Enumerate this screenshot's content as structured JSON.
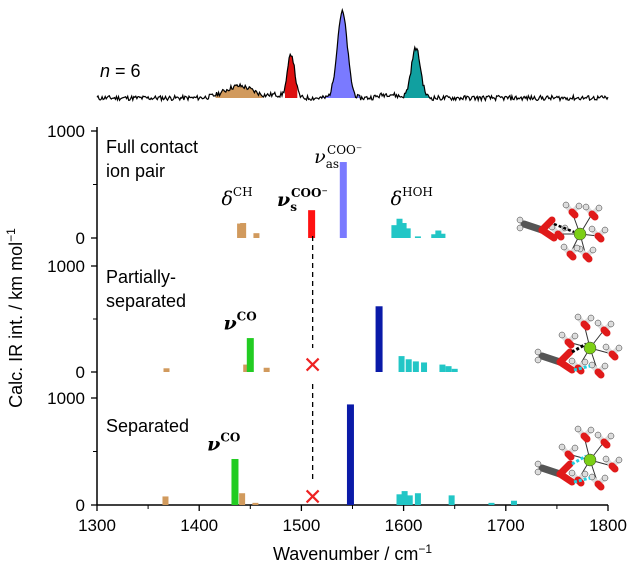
{
  "chart_data": {
    "type": "bar",
    "xlabel": "Wavenumber / cm",
    "xlabel_sup": "−1",
    "ylabel": "Calc. IR int. / km mol",
    "ylabel_sup": "−1",
    "xlim": [
      1300,
      1800
    ],
    "ylim": [
      0,
      1000
    ],
    "x_ticks": [
      "1300",
      "1400",
      "1500",
      "1600",
      "1700",
      "1800"
    ],
    "y_ticks": [
      "0",
      "1000"
    ],
    "colors": {
      "ch_bend": "#d19a5d",
      "co_stretch": "#22cc22",
      "coo_sym": "#ff1111",
      "coo_asym_contact": "#7a7aff",
      "coo_asym_separated": "#0a1aa8",
      "hoh_bend": "#22c6c6",
      "cross": "#ee2222",
      "experiment_peak_ch": "#d19a5d",
      "experiment_peak_red": "#dd1111",
      "experiment_peak_blue": "#7a7aff",
      "experiment_peak_teal": "#11a0a0"
    },
    "experiment": {
      "label_italic": "n",
      "label_rest": " = 6",
      "filled_peaks": [
        {
          "name": "CH bend",
          "range": [
            1416,
            1462
          ],
          "color": "#d19a5d"
        },
        {
          "name": "COO sym",
          "range": [
            1484,
            1496
          ],
          "color": "#dd1111"
        },
        {
          "name": "COO asym",
          "range": [
            1518,
            1560
          ],
          "color": "#7a7aff"
        },
        {
          "name": "HOH bend",
          "range": [
            1600,
            1628
          ],
          "color": "#11a0a0"
        }
      ]
    },
    "panels": [
      {
        "title_lines": [
          "Full contact",
          "ion pair"
        ],
        "sticks": [
          {
            "x": 1440,
            "y": 135,
            "color": "ch_bend"
          },
          {
            "x": 1443,
            "y": 140,
            "color": "ch_bend"
          },
          {
            "x": 1456,
            "y": 45,
            "color": "ch_bend"
          },
          {
            "x": 1510,
            "y": 260,
            "color": "coo_sym"
          },
          {
            "x": 1541,
            "y": 710,
            "color": "coo_asym_contact"
          },
          {
            "x": 1591,
            "y": 120,
            "color": "hoh_bend"
          },
          {
            "x": 1596,
            "y": 180,
            "color": "hoh_bend"
          },
          {
            "x": 1600,
            "y": 140,
            "color": "hoh_bend"
          },
          {
            "x": 1604,
            "y": 90,
            "color": "hoh_bend"
          },
          {
            "x": 1614,
            "y": 15,
            "color": "hoh_bend"
          },
          {
            "x": 1630,
            "y": 35,
            "color": "hoh_bend"
          },
          {
            "x": 1634,
            "y": 70,
            "color": "hoh_bend"
          },
          {
            "x": 1638,
            "y": 40,
            "color": "hoh_bend"
          }
        ],
        "annotations": [
          {
            "text": "δ",
            "sup": "CH",
            "x": 1437,
            "yv": 310
          },
          {
            "text": "ν",
            "sub": "s",
            "sup": "COO⁻",
            "x": 1501,
            "yv": 300,
            "bold": true
          },
          {
            "text": "ν",
            "sub": "as",
            "sup": "COO⁻",
            "x": 1536,
            "yv": 700
          },
          {
            "text": "δ",
            "sup": "HOH",
            "x": 1608,
            "yv": 310
          }
        ],
        "dashed": null,
        "cross": null
      },
      {
        "title_lines": [
          "Partially-",
          "separated"
        ],
        "sticks": [
          {
            "x": 1368,
            "y": 35,
            "color": "ch_bend"
          },
          {
            "x": 1446,
            "y": 70,
            "color": "ch_bend"
          },
          {
            "x": 1450,
            "y": 320,
            "color": "co_stretch"
          },
          {
            "x": 1466,
            "y": 40,
            "color": "ch_bend"
          },
          {
            "x": 1576,
            "y": 620,
            "color": "coo_asym_separated"
          },
          {
            "x": 1598,
            "y": 150,
            "color": "hoh_bend"
          },
          {
            "x": 1605,
            "y": 120,
            "color": "hoh_bend"
          },
          {
            "x": 1612,
            "y": 100,
            "color": "hoh_bend"
          },
          {
            "x": 1620,
            "y": 90,
            "color": "hoh_bend"
          },
          {
            "x": 1638,
            "y": 70,
            "color": "hoh_bend"
          },
          {
            "x": 1644,
            "y": 55,
            "color": "hoh_bend"
          },
          {
            "x": 1650,
            "y": 30,
            "color": "hoh_bend"
          }
        ],
        "annotations": [
          {
            "text": "ν",
            "sup": "CO",
            "x": 1440,
            "yv": 400,
            "bold": true
          }
        ],
        "dashed": {
          "x": 1511
        },
        "cross": {
          "x": 1511,
          "yv": 70
        }
      },
      {
        "title_lines": [
          "Separated"
        ],
        "sticks": [
          {
            "x": 1367,
            "y": 80,
            "color": "ch_bend"
          },
          {
            "x": 1435,
            "y": 430,
            "color": "co_stretch"
          },
          {
            "x": 1442,
            "y": 110,
            "color": "ch_bend"
          },
          {
            "x": 1455,
            "y": 20,
            "color": "ch_bend"
          },
          {
            "x": 1548,
            "y": 940,
            "color": "coo_asym_separated"
          },
          {
            "x": 1596,
            "y": 100,
            "color": "hoh_bend"
          },
          {
            "x": 1601,
            "y": 130,
            "color": "hoh_bend"
          },
          {
            "x": 1606,
            "y": 90,
            "color": "hoh_bend"
          },
          {
            "x": 1614,
            "y": 110,
            "color": "hoh_bend"
          },
          {
            "x": 1647,
            "y": 90,
            "color": "hoh_bend"
          },
          {
            "x": 1686,
            "y": 20,
            "color": "hoh_bend"
          },
          {
            "x": 1708,
            "y": 40,
            "color": "hoh_bend"
          }
        ],
        "annotations": [
          {
            "text": "ν",
            "sup": "CO",
            "x": 1424,
            "yv": 510,
            "bold": true
          }
        ],
        "dashed": {
          "x": 1511
        },
        "cross": {
          "x": 1511,
          "yv": 80
        }
      }
    ]
  }
}
